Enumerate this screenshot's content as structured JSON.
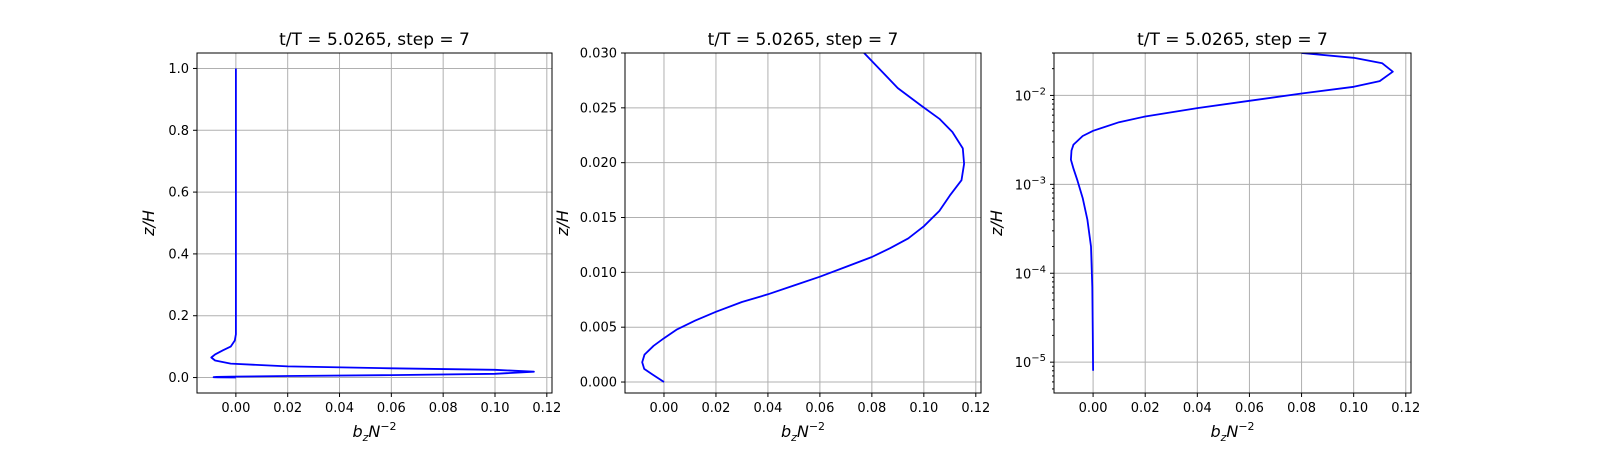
{
  "colors": {
    "line": "#0000ff",
    "grid": "#b0b0b0",
    "axes": "#000000"
  },
  "chart_data": [
    {
      "type": "line",
      "title": "t/T = 5.0265, step = 7",
      "xlabel_base": "b",
      "xlabel_sub": "z",
      "xlabel_mid": "N",
      "xlabel_sup": "−2",
      "ylabel": "z/H",
      "yscale": "linear",
      "xlim": [
        -0.015,
        0.122
      ],
      "ylim": [
        -0.05,
        1.05
      ],
      "xticks": [
        0.0,
        0.02,
        0.04,
        0.06,
        0.08,
        0.1,
        0.12
      ],
      "xtick_labels": [
        "0.00",
        "0.02",
        "0.04",
        "0.06",
        "0.08",
        "0.10",
        "0.12"
      ],
      "yticks": [
        0.0,
        0.2,
        0.4,
        0.6,
        0.8,
        1.0
      ],
      "ytick_labels": [
        "0.0",
        "0.2",
        "0.4",
        "0.6",
        "0.8",
        "1.0"
      ],
      "grid": true,
      "series": [
        {
          "name": "b_z N^-2",
          "x": [
            0.0,
            -0.007,
            -0.0086,
            -0.0075,
            -0.002,
            0.02,
            0.06,
            0.1,
            0.115,
            0.1,
            0.06,
            0.02,
            -0.002,
            -0.008,
            -0.0095,
            -0.008,
            -0.005,
            -0.002,
            -0.0004,
            0.0,
            0.0,
            0.0,
            0.0
          ],
          "y": [
            0.0,
            0.0005,
            0.001,
            0.002,
            0.003,
            0.005,
            0.008,
            0.012,
            0.019,
            0.025,
            0.03,
            0.036,
            0.045,
            0.055,
            0.065,
            0.075,
            0.088,
            0.1,
            0.12,
            0.14,
            0.18,
            0.5,
            1.0
          ]
        }
      ]
    },
    {
      "type": "line",
      "title": "t/T = 5.0265, step = 7",
      "xlabel_base": "b",
      "xlabel_sub": "z",
      "xlabel_mid": "N",
      "xlabel_sup": "−2",
      "ylabel": "z/H",
      "yscale": "linear",
      "xlim": [
        -0.015,
        0.122
      ],
      "ylim": [
        -0.001,
        0.03
      ],
      "xticks": [
        0.0,
        0.02,
        0.04,
        0.06,
        0.08,
        0.1,
        0.12
      ],
      "xtick_labels": [
        "0.00",
        "0.02",
        "0.04",
        "0.06",
        "0.08",
        "0.10",
        "0.12"
      ],
      "yticks": [
        0.0,
        0.005,
        0.01,
        0.015,
        0.02,
        0.025,
        0.03
      ],
      "ytick_labels": [
        "0.000",
        "0.005",
        "0.010",
        "0.015",
        "0.020",
        "0.025",
        "0.030"
      ],
      "grid": true,
      "series": [
        {
          "name": "b_z N^-2",
          "x": [
            0.0,
            -0.0045,
            -0.0076,
            -0.0084,
            -0.0075,
            -0.004,
            0.0,
            0.005,
            0.012,
            0.02,
            0.03,
            0.04,
            0.05,
            0.06,
            0.07,
            0.08,
            0.087,
            0.094,
            0.1,
            0.106,
            0.11,
            0.1145,
            0.1155,
            0.115,
            0.111,
            0.106,
            0.099,
            0.09,
            0.077
          ],
          "y": [
            0.0,
            0.0007,
            0.0012,
            0.0018,
            0.0025,
            0.0033,
            0.004,
            0.0048,
            0.0056,
            0.0064,
            0.0073,
            0.008,
            0.0088,
            0.0096,
            0.0105,
            0.0114,
            0.0122,
            0.0131,
            0.0142,
            0.0156,
            0.017,
            0.0184,
            0.0199,
            0.0213,
            0.0228,
            0.024,
            0.0252,
            0.0268,
            0.03
          ]
        }
      ]
    },
    {
      "type": "line",
      "title": "t/T = 5.0265, step = 7",
      "xlabel_base": "b",
      "xlabel_sub": "z",
      "xlabel_mid": "N",
      "xlabel_sup": "−2",
      "ylabel": "z/H",
      "yscale": "log",
      "xlim": [
        -0.015,
        0.122
      ],
      "ylim": [
        4.5e-06,
        0.03
      ],
      "xticks": [
        0.0,
        0.02,
        0.04,
        0.06,
        0.08,
        0.1,
        0.12
      ],
      "xtick_labels": [
        "0.00",
        "0.02",
        "0.04",
        "0.06",
        "0.08",
        "0.10",
        "0.12"
      ],
      "yticks": [
        1e-05,
        0.0001,
        0.001,
        0.01
      ],
      "ytick_labels": [
        {
          "base": "10",
          "exp": "−5"
        },
        {
          "base": "10",
          "exp": "−4"
        },
        {
          "base": "10",
          "exp": "−3"
        },
        {
          "base": "10",
          "exp": "−2"
        }
      ],
      "grid": true,
      "series": [
        {
          "name": "b_z N^-2",
          "x": [
            0.0,
            -0.0001,
            -0.0003,
            -0.0008,
            -0.0022,
            -0.004,
            -0.006,
            -0.0075,
            -0.0085,
            -0.0083,
            -0.0075,
            -0.004,
            0.0,
            0.01,
            0.02,
            0.04,
            0.06,
            0.08,
            0.1,
            0.11,
            0.115,
            0.111,
            0.1,
            0.08
          ],
          "y": [
            8e-06,
            2e-05,
            7e-05,
            0.0002,
            0.0004,
            0.0007,
            0.0011,
            0.0015,
            0.0019,
            0.0024,
            0.0028,
            0.0035,
            0.004,
            0.005,
            0.0058,
            0.0072,
            0.0087,
            0.0105,
            0.0125,
            0.0145,
            0.0185,
            0.023,
            0.0265,
            0.03
          ]
        }
      ]
    }
  ]
}
